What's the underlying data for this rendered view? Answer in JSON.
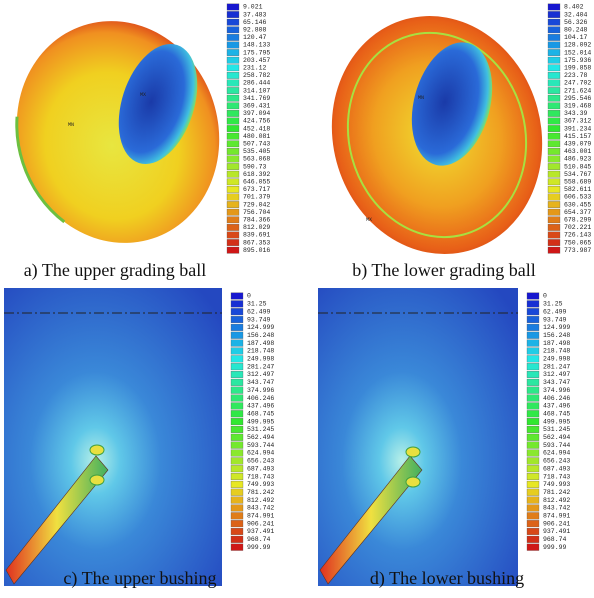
{
  "panels": [
    {
      "caption": "a) The upper grading ball",
      "markers": [
        "MX",
        "MN"
      ],
      "legend": [
        "9.021",
        "37.483",
        "65.146",
        "92.808",
        "120.47",
        "148.133",
        "175.795",
        "203.457",
        "231.12",
        "258.782",
        "286.444",
        "314.107",
        "341.769",
        "369.431",
        "397.094",
        "424.756",
        "452.418",
        "480.081",
        "507.743",
        "535.405",
        "563.068",
        "590.73",
        "618.392",
        "646.055",
        "673.717",
        "701.379",
        "729.042",
        "756.704",
        "784.366",
        "812.029",
        "839.691",
        "867.353",
        "895.016"
      ]
    },
    {
      "caption": "b) The lower grading ball",
      "markers": [
        "MN",
        "MX"
      ],
      "legend": [
        "8.402",
        "32.404",
        "56.326",
        "80.248",
        "104.17",
        "128.092",
        "152.014",
        "175.936",
        "199.858",
        "223.78",
        "247.702",
        "271.624",
        "295.546",
        "319.468",
        "343.39",
        "367.312",
        "391.234",
        "415.157",
        "439.079",
        "463.001",
        "486.923",
        "510.845",
        "534.767",
        "558.689",
        "582.611",
        "606.533",
        "630.455",
        "654.377",
        "678.299",
        "702.221",
        "726.143",
        "750.065",
        "773.987"
      ]
    },
    {
      "caption": "c) The upper bushing",
      "legend": [
        "0",
        "31.25",
        "62.499",
        "93.749",
        "124.999",
        "156.248",
        "187.498",
        "218.748",
        "249.998",
        "281.247",
        "312.497",
        "343.747",
        "374.996",
        "406.246",
        "437.496",
        "468.745",
        "499.995",
        "531.245",
        "562.494",
        "593.744",
        "624.994",
        "656.243",
        "687.493",
        "718.743",
        "749.993",
        "781.242",
        "812.492",
        "843.742",
        "874.991",
        "906.241",
        "937.491",
        "968.74",
        "999.99"
      ]
    },
    {
      "caption": "d) The lower bushing",
      "legend": [
        "0",
        "31.25",
        "62.499",
        "93.749",
        "124.999",
        "156.248",
        "187.498",
        "218.748",
        "249.998",
        "281.247",
        "312.497",
        "343.747",
        "374.996",
        "406.246",
        "437.496",
        "468.745",
        "499.995",
        "531.245",
        "562.494",
        "593.744",
        "624.994",
        "656.243",
        "687.493",
        "718.743",
        "749.993",
        "781.242",
        "812.492",
        "843.742",
        "874.991",
        "906.241",
        "937.491",
        "968.74",
        "999.99"
      ]
    }
  ]
}
